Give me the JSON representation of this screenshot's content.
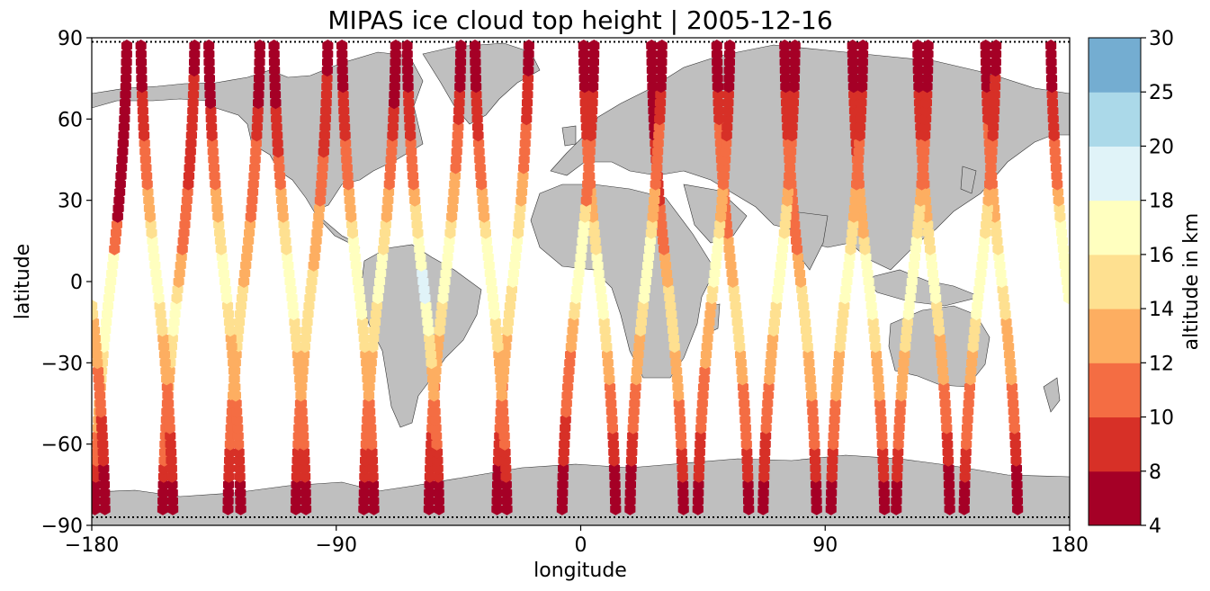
{
  "chart_data": {
    "type": "scatter",
    "title": "MIPAS ice cloud top height | 2005-12-16",
    "xlabel": "longitude",
    "ylabel": "latitude",
    "xlim": [
      -180,
      180
    ],
    "ylim": [
      -90,
      90
    ],
    "x_ticks": [
      "−180",
      "−90",
      "0",
      "90",
      "180"
    ],
    "y_ticks": [
      "90",
      "60",
      "30",
      "0",
      "−30",
      "−60",
      "−90"
    ],
    "x_tick_values": [
      -180,
      -90,
      0,
      90,
      180
    ],
    "y_tick_values": [
      90,
      60,
      30,
      0,
      -30,
      -60,
      -90
    ],
    "basemap": "world land masses (grey) with coastlines",
    "land_color": "#bfbfbf",
    "track_style": "black dotted orbit tracks",
    "colorbar": {
      "label": "altitude in km",
      "boundaries": [
        4,
        8,
        10,
        12,
        14,
        16,
        18,
        20,
        25,
        30
      ],
      "tick_labels": [
        "4",
        "8",
        "10",
        "12",
        "14",
        "16",
        "18",
        "20",
        "25",
        "30"
      ],
      "colors": [
        "#a50026",
        "#d73027",
        "#f46d43",
        "#fdae61",
        "#fee090",
        "#ffffbf",
        "#e0f3f8",
        "#abd9e9",
        "#74add1",
        "#4575b4"
      ]
    },
    "orbit_equator_crossings_lon": [
      -173,
      -148,
      -124,
      -99,
      -74,
      -50,
      -25,
      -1,
      24,
      49,
      73,
      98,
      122,
      147
    ],
    "samples_lat": [
      -84,
      -78,
      -72,
      -66,
      -60,
      -54,
      -48,
      -42,
      -36,
      -30,
      -24,
      -18,
      -12,
      -6,
      0,
      6,
      12,
      18,
      24,
      30,
      36,
      42,
      48,
      54,
      60,
      66,
      72,
      78,
      84
    ],
    "ascending_heights_km": [
      [
        7,
        7,
        9,
        11,
        11,
        13,
        13,
        13,
        15,
        15,
        17,
        17,
        17,
        17,
        17,
        17,
        11,
        11,
        7,
        7,
        7,
        7,
        7,
        7,
        7,
        7,
        7,
        7,
        7
      ],
      [
        7,
        7,
        9,
        11,
        11,
        11,
        11,
        13,
        13,
        15,
        15,
        17,
        17,
        15,
        13,
        13,
        11,
        11,
        11,
        11,
        9,
        9,
        9,
        9,
        9,
        9,
        9,
        7,
        7
      ],
      [
        7,
        7,
        9,
        9,
        11,
        11,
        11,
        13,
        13,
        13,
        15,
        15,
        15,
        15,
        13,
        13,
        13,
        13,
        11,
        11,
        11,
        11,
        11,
        9,
        9,
        7,
        7,
        7,
        7
      ],
      [
        7,
        7,
        9,
        9,
        11,
        11,
        11,
        13,
        13,
        13,
        15,
        15,
        15,
        15,
        15,
        13,
        13,
        13,
        13,
        11,
        11,
        11,
        9,
        9,
        9,
        9,
        9,
        7,
        7
      ],
      [
        7,
        7,
        9,
        9,
        11,
        11,
        11,
        13,
        13,
        13,
        15,
        15,
        15,
        17,
        17,
        17,
        15,
        15,
        13,
        13,
        11,
        11,
        11,
        9,
        9,
        7,
        7,
        7,
        7
      ],
      [
        7,
        7,
        9,
        9,
        9,
        11,
        11,
        11,
        13,
        13,
        13,
        15,
        15,
        17,
        17,
        17,
        17,
        15,
        13,
        13,
        13,
        11,
        11,
        11,
        9,
        9,
        7,
        7,
        7
      ],
      [
        7,
        7,
        7,
        9,
        9,
        11,
        11,
        11,
        13,
        13,
        13,
        15,
        15,
        15,
        17,
        17,
        17,
        15,
        15,
        13,
        13,
        11,
        11,
        11,
        9,
        9,
        9,
        7,
        7
      ],
      [
        7,
        7,
        7,
        9,
        9,
        9,
        11,
        11,
        11,
        11,
        13,
        13,
        15,
        17,
        17,
        17,
        17,
        17,
        15,
        11,
        11,
        11,
        11,
        9,
        9,
        9,
        7,
        7,
        7
      ],
      [
        7,
        7,
        7,
        9,
        9,
        11,
        11,
        11,
        13,
        13,
        13,
        15,
        15,
        17,
        17,
        17,
        17,
        15,
        13,
        13,
        11,
        11,
        11,
        11,
        9,
        9,
        7,
        7,
        7
      ],
      [
        7,
        7,
        9,
        9,
        9,
        11,
        11,
        11,
        11,
        13,
        13,
        13,
        13,
        15,
        17,
        17,
        17,
        15,
        13,
        13,
        11,
        11,
        11,
        9,
        9,
        9,
        7,
        7,
        7
      ],
      [
        7,
        7,
        9,
        9,
        9,
        11,
        11,
        11,
        13,
        13,
        13,
        15,
        15,
        17,
        17,
        17,
        17,
        15,
        15,
        13,
        11,
        11,
        11,
        9,
        9,
        9,
        7,
        7,
        7
      ],
      [
        7,
        7,
        9,
        9,
        11,
        11,
        11,
        13,
        13,
        13,
        15,
        15,
        15,
        17,
        17,
        17,
        15,
        15,
        13,
        13,
        11,
        11,
        11,
        9,
        9,
        9,
        7,
        7,
        7
      ],
      [
        7,
        7,
        9,
        9,
        11,
        11,
        11,
        13,
        13,
        13,
        15,
        15,
        17,
        17,
        17,
        17,
        17,
        15,
        15,
        13,
        11,
        11,
        11,
        9,
        9,
        9,
        7,
        7,
        7
      ],
      [
        7,
        7,
        9,
        9,
        11,
        11,
        11,
        11,
        13,
        13,
        15,
        15,
        17,
        17,
        17,
        17,
        17,
        15,
        15,
        13,
        11,
        11,
        11,
        9,
        9,
        9,
        9,
        7,
        7
      ]
    ],
    "descending_heights_km": [
      [
        7,
        7,
        7,
        9,
        9,
        11,
        11,
        11,
        13,
        13,
        15,
        15,
        17,
        17,
        17,
        17,
        15,
        15,
        13,
        13,
        11,
        11,
        11,
        9,
        9,
        9,
        7,
        7,
        7
      ],
      [
        7,
        7,
        9,
        9,
        11,
        11,
        11,
        13,
        13,
        13,
        15,
        15,
        15,
        15,
        13,
        13,
        11,
        11,
        11,
        9,
        9,
        9,
        9,
        7,
        7,
        7,
        7,
        7,
        7
      ],
      [
        7,
        7,
        9,
        9,
        11,
        11,
        11,
        11,
        13,
        13,
        15,
        15,
        15,
        15,
        13,
        13,
        13,
        11,
        11,
        11,
        11,
        11,
        11,
        11,
        9,
        9,
        7,
        7,
        7
      ],
      [
        7,
        7,
        9,
        9,
        11,
        11,
        11,
        13,
        13,
        13,
        15,
        15,
        15,
        15,
        13,
        13,
        11,
        11,
        11,
        11,
        11,
        11,
        11,
        9,
        9,
        9,
        7,
        7,
        7
      ],
      [
        7,
        7,
        9,
        9,
        11,
        11,
        11,
        13,
        13,
        13,
        15,
        15,
        17,
        17,
        17,
        17,
        15,
        13,
        13,
        13,
        11,
        11,
        9,
        9,
        9,
        9,
        7,
        7,
        7
      ],
      [
        7,
        7,
        7,
        9,
        9,
        11,
        11,
        11,
        13,
        13,
        13,
        15,
        15,
        17,
        17,
        17,
        15,
        15,
        13,
        13,
        11,
        11,
        11,
        9,
        9,
        9,
        7,
        7,
        7
      ],
      [
        7,
        7,
        7,
        9,
        9,
        11,
        11,
        11,
        13,
        13,
        13,
        13,
        15,
        15,
        17,
        17,
        15,
        15,
        13,
        13,
        11,
        11,
        11,
        11,
        9,
        9,
        7,
        7,
        7
      ],
      [
        7,
        7,
        7,
        9,
        9,
        9,
        11,
        11,
        11,
        13,
        13,
        13,
        15,
        17,
        17,
        17,
        17,
        17,
        15,
        13,
        11,
        11,
        11,
        9,
        9,
        9,
        7,
        7,
        7
      ],
      [
        7,
        7,
        9,
        9,
        9,
        11,
        11,
        11,
        13,
        13,
        13,
        15,
        15,
        17,
        17,
        17,
        17,
        15,
        13,
        13,
        11,
        11,
        11,
        9,
        9,
        9,
        7,
        7,
        7
      ],
      [
        7,
        7,
        9,
        9,
        11,
        11,
        11,
        13,
        13,
        13,
        13,
        15,
        15,
        17,
        17,
        17,
        15,
        15,
        13,
        13,
        11,
        11,
        11,
        9,
        9,
        7,
        7,
        7,
        7
      ],
      [
        7,
        7,
        9,
        9,
        11,
        11,
        11,
        13,
        13,
        13,
        15,
        15,
        17,
        17,
        17,
        17,
        15,
        15,
        13,
        13,
        11,
        11,
        9,
        9,
        9,
        7,
        7,
        7,
        7
      ],
      [
        7,
        7,
        9,
        9,
        11,
        11,
        11,
        13,
        13,
        13,
        15,
        15,
        17,
        17,
        17,
        17,
        17,
        15,
        13,
        13,
        11,
        11,
        11,
        9,
        9,
        9,
        7,
        7,
        7
      ],
      [
        7,
        7,
        9,
        9,
        11,
        11,
        11,
        13,
        13,
        15,
        15,
        17,
        17,
        19,
        19,
        17,
        17,
        15,
        15,
        13,
        11,
        11,
        11,
        9,
        9,
        9,
        7,
        7,
        7
      ],
      [
        7,
        7,
        9,
        9,
        11,
        11,
        11,
        13,
        13,
        13,
        15,
        15,
        17,
        17,
        17,
        17,
        17,
        15,
        13,
        13,
        11,
        11,
        11,
        9,
        9,
        9,
        7,
        7,
        7
      ]
    ]
  }
}
